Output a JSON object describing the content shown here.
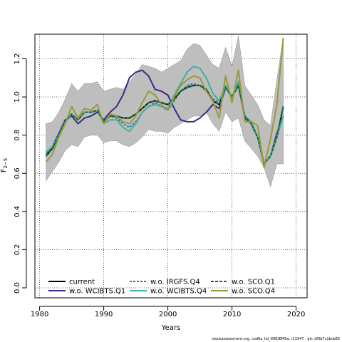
{
  "chart_data": {
    "type": "line",
    "xlabel": "Years",
    "ylabel": "F",
    "ylabel_subscript": "2−5",
    "xlim": [
      1980,
      2020
    ],
    "ylim": [
      0,
      1.3
    ],
    "xticks": [
      1980,
      1990,
      2000,
      2010,
      2020
    ],
    "xtick_labels": [
      "1980",
      "1990",
      "2000",
      "2010",
      "2020"
    ],
    "yticks": [
      0.0,
      0.2,
      0.4,
      0.6,
      0.8,
      1.0,
      1.2
    ],
    "ytick_labels": [
      "0.0",
      "0.2",
      "0.4",
      "0.6",
      "0.8",
      "1.0",
      "1.2"
    ],
    "grid": true,
    "legend_position": "bottom-left",
    "footer": "stockassessment.org, cod6a_hd_WKDEM5a, r11947 , git: df0b7c1bcb83",
    "x": [
      1981,
      1982,
      1983,
      1984,
      1985,
      1986,
      1987,
      1988,
      1989,
      1990,
      1991,
      1992,
      1993,
      1994,
      1995,
      1996,
      1997,
      1998,
      1999,
      2000,
      2001,
      2002,
      2003,
      2004,
      2005,
      2006,
      2007,
      2008,
      2009,
      2010,
      2011,
      2012,
      2013,
      2014,
      2015,
      2016,
      2017,
      2018
    ],
    "band": {
      "color": "#bebebe",
      "lower": [
        0.56,
        0.61,
        0.66,
        0.72,
        0.75,
        0.74,
        0.79,
        0.8,
        0.8,
        0.76,
        0.77,
        0.77,
        0.75,
        0.74,
        0.76,
        0.79,
        0.83,
        0.82,
        0.82,
        0.81,
        0.84,
        0.86,
        0.88,
        0.9,
        0.9,
        0.92,
        0.86,
        0.82,
        0.92,
        0.87,
        0.89,
        0.77,
        0.73,
        0.69,
        0.63,
        0.53,
        0.65,
        0.65
      ],
      "upper": [
        0.86,
        0.87,
        0.92,
        0.99,
        1.07,
        1.03,
        1.07,
        1.07,
        1.08,
        1.03,
        1.04,
        1.05,
        1.04,
        1.08,
        1.12,
        1.17,
        1.16,
        1.15,
        1.13,
        1.15,
        1.17,
        1.19,
        1.25,
        1.28,
        1.27,
        1.22,
        1.17,
        1.15,
        1.26,
        1.16,
        1.32,
        1.06,
        1.01,
        0.96,
        0.88,
        0.85,
        1.09,
        1.31
      ]
    },
    "series": [
      {
        "name": "current",
        "color": "#000000",
        "dash": "",
        "width": 2,
        "values": [
          0.69,
          0.73,
          0.8,
          0.87,
          0.91,
          0.88,
          0.92,
          0.92,
          0.93,
          0.87,
          0.9,
          0.9,
          0.89,
          0.89,
          0.91,
          0.94,
          0.97,
          0.98,
          0.97,
          0.96,
          0.99,
          1.03,
          1.05,
          1.06,
          1.06,
          1.04,
          0.98,
          0.96,
          1.05,
          1.0,
          1.06,
          0.9,
          0.86,
          0.79,
          0.65,
          0.69,
          0.79,
          0.95
        ]
      },
      {
        "name": "w.o. WCIBTS.Q1",
        "color": "#3a2a86",
        "dash": "",
        "width": 2,
        "values": [
          0.7,
          0.74,
          0.81,
          0.88,
          0.9,
          0.86,
          0.89,
          0.9,
          0.92,
          0.88,
          0.92,
          0.95,
          1.01,
          1.1,
          1.13,
          1.14,
          1.11,
          1.04,
          1.03,
          1.01,
          0.94,
          0.88,
          0.87,
          0.87,
          0.89,
          0.92,
          0.96,
          0.94,
          1.05,
          1.0,
          1.07,
          0.89,
          0.86,
          0.79,
          0.65,
          0.69,
          0.81,
          0.9
        ]
      },
      {
        "name": "w.o. IRGFS.Q4",
        "color": "#2874a6",
        "dash": "3,2",
        "width": 2,
        "values": [
          0.7,
          0.74,
          0.81,
          0.87,
          0.91,
          0.88,
          0.92,
          0.92,
          0.93,
          0.87,
          0.9,
          0.89,
          0.86,
          0.84,
          0.87,
          0.92,
          0.95,
          0.97,
          0.95,
          0.93,
          0.98,
          1.03,
          1.06,
          1.07,
          1.06,
          1.03,
          0.99,
          0.97,
          1.05,
          1.0,
          1.06,
          0.9,
          0.86,
          0.79,
          0.65,
          0.69,
          0.8,
          0.95
        ]
      },
      {
        "name": "w.o. WCIBTS.Q4",
        "color": "#40b0a0",
        "dash": "",
        "width": 2,
        "values": [
          0.71,
          0.74,
          0.8,
          0.87,
          0.91,
          0.88,
          0.92,
          0.92,
          0.93,
          0.86,
          0.88,
          0.88,
          0.84,
          0.82,
          0.86,
          0.92,
          0.95,
          0.96,
          0.95,
          0.94,
          1.01,
          1.07,
          1.13,
          1.16,
          1.15,
          1.1,
          1.02,
          0.98,
          1.06,
          1.0,
          1.08,
          0.9,
          0.87,
          0.79,
          0.65,
          0.69,
          0.79,
          0.9
        ]
      },
      {
        "name": "w.o. SCO.Q1",
        "color": "#1a6a2a",
        "dash": "4,2",
        "width": 2,
        "values": [
          0.69,
          0.73,
          0.8,
          0.87,
          0.91,
          0.88,
          0.92,
          0.92,
          0.93,
          0.87,
          0.9,
          0.9,
          0.89,
          0.89,
          0.91,
          0.94,
          0.97,
          0.98,
          0.97,
          0.96,
          0.99,
          1.03,
          1.05,
          1.06,
          1.06,
          1.04,
          0.98,
          0.96,
          1.05,
          1.0,
          1.06,
          0.9,
          0.86,
          0.79,
          0.65,
          0.69,
          0.79,
          0.95
        ]
      },
      {
        "name": "w.o. SCO.Q4",
        "color": "#9a9838",
        "dash": "",
        "width": 2,
        "values": [
          0.66,
          0.7,
          0.79,
          0.86,
          0.95,
          0.89,
          0.94,
          0.93,
          0.96,
          0.86,
          0.91,
          0.9,
          0.87,
          0.86,
          0.9,
          0.97,
          1.03,
          1.01,
          0.96,
          0.93,
          1.0,
          1.06,
          1.09,
          1.11,
          1.1,
          1.03,
          0.98,
          0.89,
          1.11,
          0.97,
          1.14,
          0.87,
          0.87,
          0.85,
          0.63,
          0.78,
          0.96,
          1.31
        ]
      }
    ]
  }
}
